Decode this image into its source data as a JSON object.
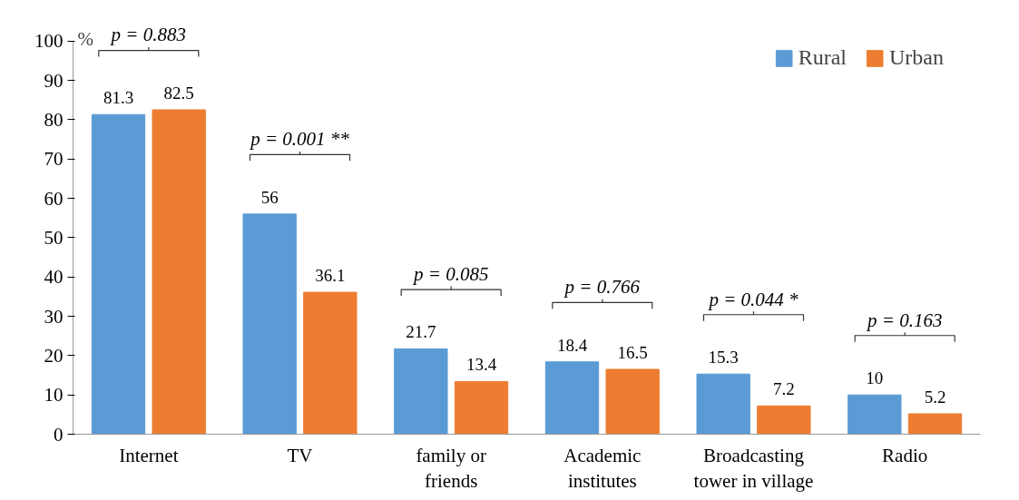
{
  "chart_data": {
    "type": "bar",
    "ylabel": "%",
    "categories": [
      "Internet",
      "TV",
      "family or friends",
      "Academic institutes",
      "Broadcasting tower in village",
      "Radio"
    ],
    "series": [
      {
        "name": "Rural",
        "color": "#5b9bd5",
        "values": [
          81.3,
          56,
          21.7,
          18.4,
          15.3,
          10
        ]
      },
      {
        "name": "Urban",
        "color": "#ed7d31",
        "values": [
          82.5,
          36.1,
          13.4,
          16.5,
          7.2,
          5.2
        ]
      }
    ],
    "ylim": [
      0,
      100
    ],
    "yticks": [
      0,
      10,
      20,
      30,
      40,
      50,
      60,
      70,
      80,
      90,
      100
    ],
    "grid": false,
    "legend": "top right",
    "data_labels": true,
    "annotations": [
      "p = 0.883",
      "p = 0.001 **",
      "p = 0.085",
      "p = 0.766",
      "p = 0.044 *",
      "p = 0.163"
    ]
  }
}
